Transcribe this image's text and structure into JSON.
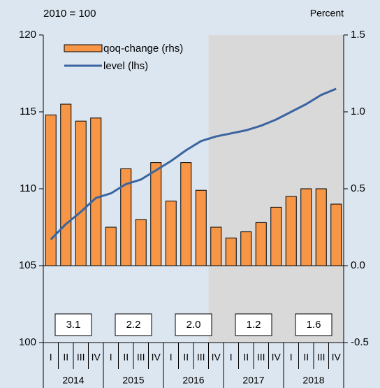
{
  "chart_data": {
    "type": "bar",
    "unit_left": "2010 = 100",
    "unit_right": "Percent",
    "categories": [
      "I",
      "II",
      "III",
      "IV",
      "I",
      "II",
      "III",
      "IV",
      "I",
      "II",
      "III",
      "IV",
      "I",
      "II",
      "III",
      "IV",
      "I",
      "II",
      "III",
      "IV"
    ],
    "years": [
      "2014",
      "2015",
      "2016",
      "2017",
      "2018"
    ],
    "annual_values": [
      3.1,
      2.2,
      2.0,
      1.2,
      1.6
    ],
    "annual_labels": [
      "3.1",
      "2.2",
      "2.0",
      "1.2",
      "1.6"
    ],
    "shade_from": 11,
    "series": [
      {
        "name": "qoq-change (rhs)",
        "color": "#f79646",
        "axis": "y2",
        "values": [
          0.98,
          1.05,
          0.94,
          0.96,
          0.25,
          0.63,
          0.3,
          0.67,
          0.42,
          0.67,
          0.49,
          0.25,
          0.18,
          0.22,
          0.28,
          0.38,
          0.45,
          0.5,
          0.5,
          0.4
        ]
      },
      {
        "name": "level (lhs)",
        "color": "#3b64a0",
        "type": "line",
        "values": [
          106.7,
          107.7,
          108.5,
          109.4,
          109.7,
          110.3,
          110.6,
          111.2,
          111.8,
          112.5,
          113.1,
          113.4,
          113.6,
          113.8,
          114.1,
          114.5,
          115.0,
          115.5,
          116.1,
          116.5
        ]
      }
    ],
    "ylim": [
      100,
      120
    ],
    "yticks": [
      100,
      105,
      110,
      115,
      120
    ],
    "y2lim": [
      -0.5,
      1.5
    ],
    "y2ticks": [
      -0.5,
      {
        "value": 0,
        "label": "0.0"
      },
      0.5,
      {
        "value": 1,
        "label": "1.0"
      },
      1.5
    ]
  }
}
